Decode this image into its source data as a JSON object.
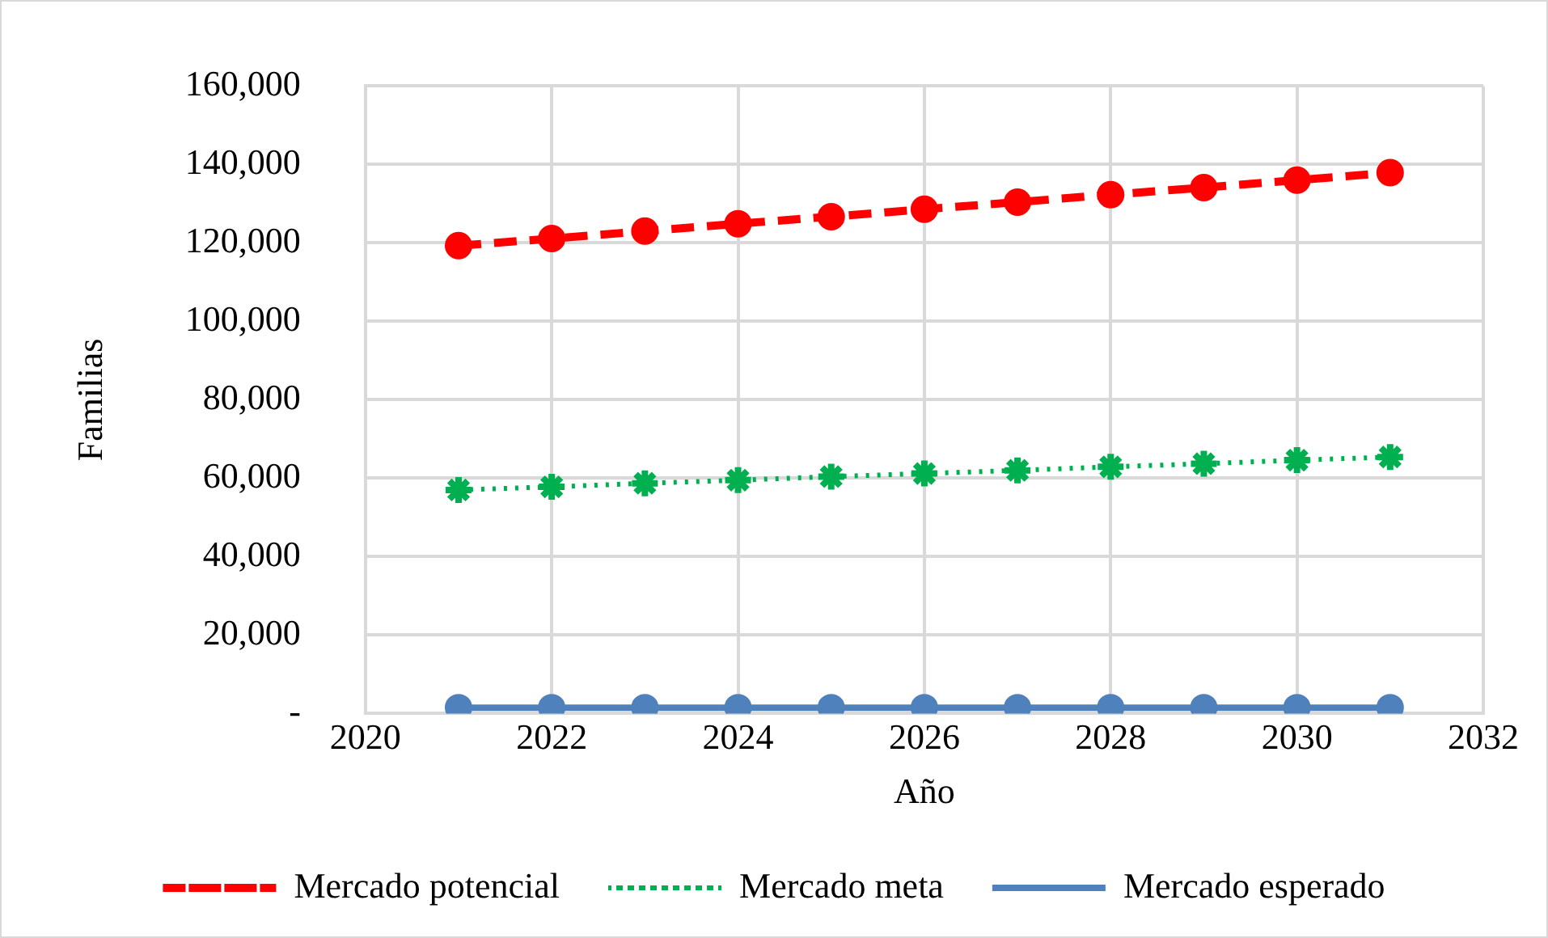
{
  "chart_data": {
    "type": "line",
    "xlabel": "Año",
    "ylabel": "Familias",
    "x": [
      2021,
      2022,
      2023,
      2024,
      2025,
      2026,
      2027,
      2028,
      2029,
      2030,
      2031
    ],
    "series": [
      {
        "name": "Mercado potencial",
        "color": "#ff0000",
        "marker": "circle",
        "line_style": "dashed",
        "values": [
          119300,
          121100,
          123000,
          124900,
          126700,
          128600,
          130400,
          132300,
          134100,
          136000,
          137900
        ]
      },
      {
        "name": "Mercado meta",
        "color": "#00b050",
        "marker": "cross",
        "line_style": "dotted",
        "values": [
          57000,
          57800,
          58700,
          59500,
          60400,
          61200,
          62000,
          62900,
          63700,
          64600,
          65400
        ]
      },
      {
        "name": "Mercado esperado",
        "color": "#4f81bd",
        "marker": "circle",
        "line_style": "solid",
        "values": [
          1500,
          1500,
          1500,
          1500,
          1500,
          1500,
          1500,
          1500,
          1500,
          1500,
          1500
        ]
      }
    ],
    "xlim": [
      2020,
      2032
    ],
    "xticks": [
      {
        "value": 2020,
        "label": "2020"
      },
      {
        "value": 2022,
        "label": "2022"
      },
      {
        "value": 2024,
        "label": "2024"
      },
      {
        "value": 2026,
        "label": "2026"
      },
      {
        "value": 2028,
        "label": "2028"
      },
      {
        "value": 2030,
        "label": "2030"
      },
      {
        "value": 2032,
        "label": "2032"
      }
    ],
    "ylim": [
      0,
      160000
    ],
    "yticks": [
      {
        "value": 0,
        "label": "-"
      },
      {
        "value": 20000,
        "label": "20,000"
      },
      {
        "value": 40000,
        "label": "40,000"
      },
      {
        "value": 60000,
        "label": "60,000"
      },
      {
        "value": 80000,
        "label": "80,000"
      },
      {
        "value": 100000,
        "label": "100,000"
      },
      {
        "value": 120000,
        "label": "120,000"
      },
      {
        "value": 140000,
        "label": "140,000"
      },
      {
        "value": 160000,
        "label": "160,000"
      }
    ],
    "grid": true,
    "legend": "bottom"
  }
}
